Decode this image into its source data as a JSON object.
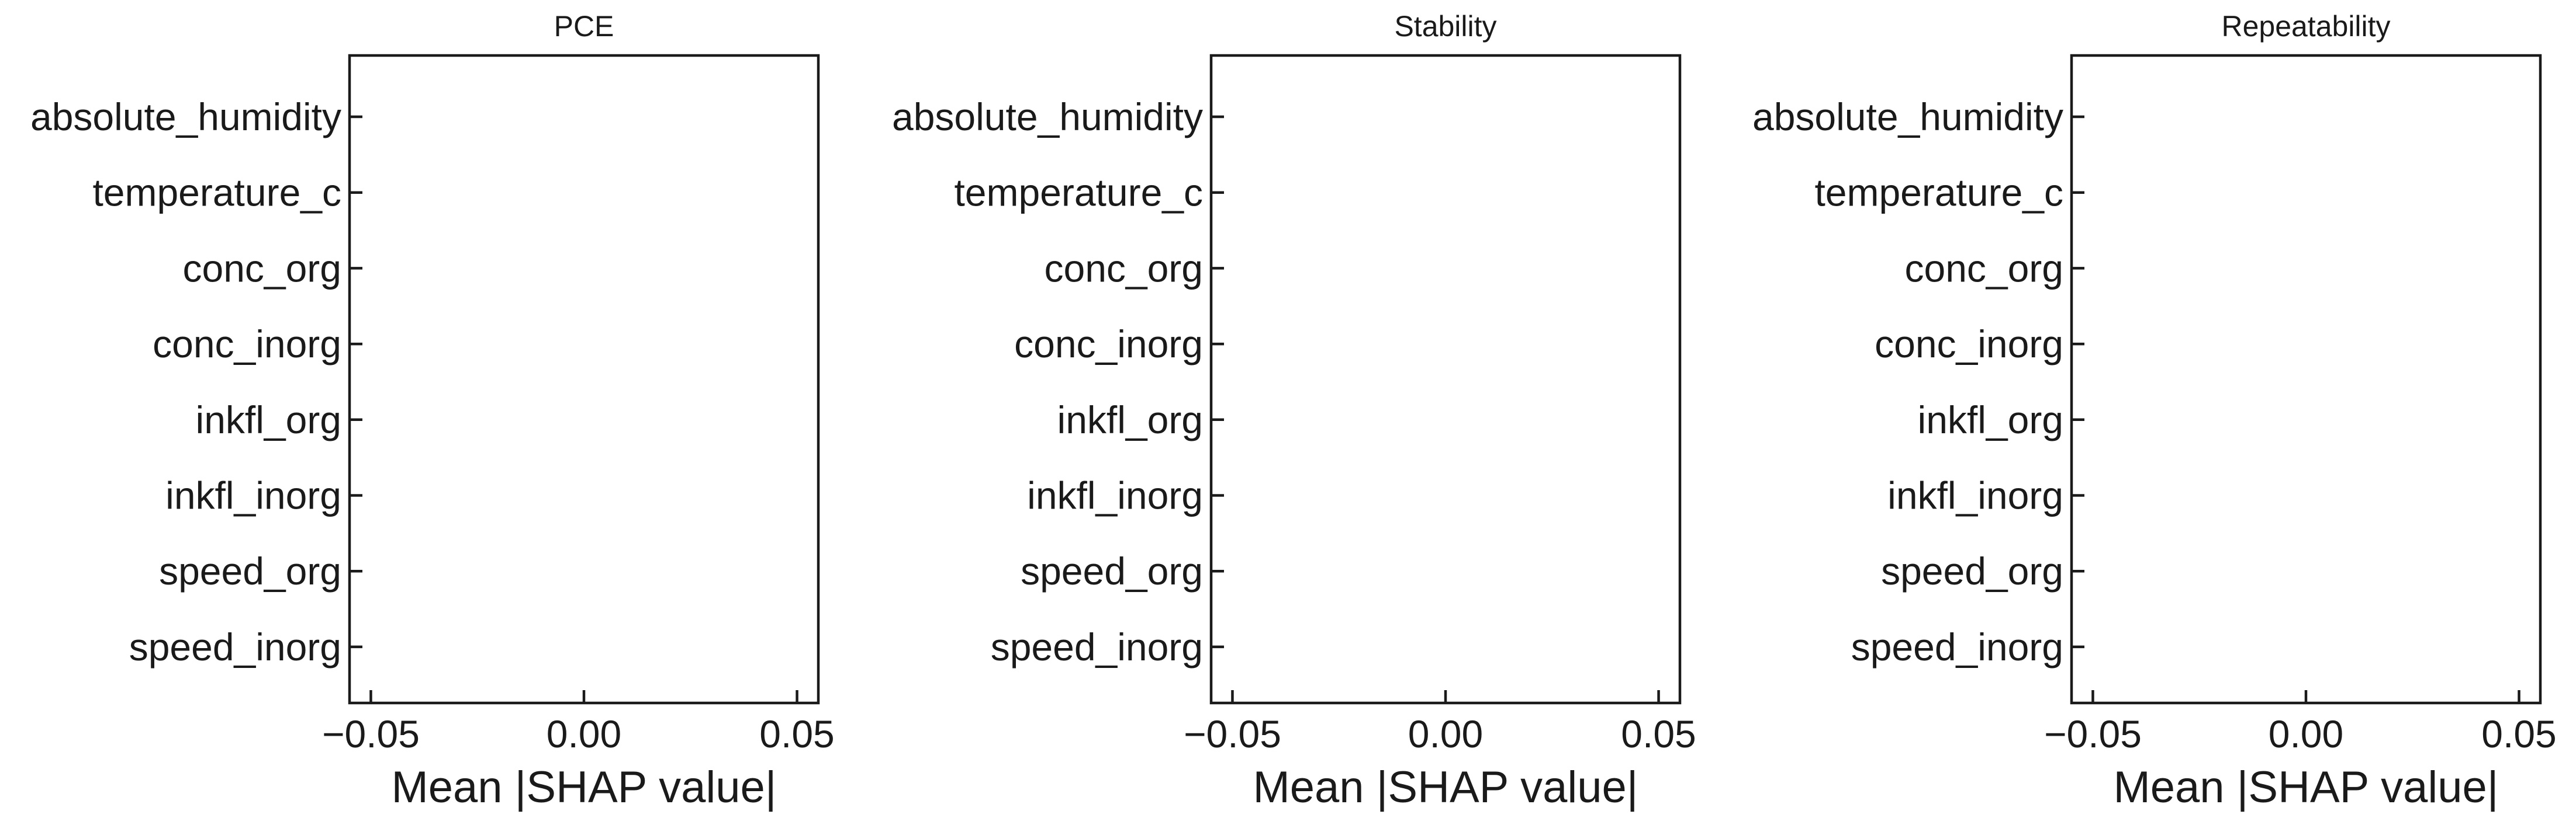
{
  "chart_data": [
    {
      "type": "bar",
      "title": "PCE",
      "xlabel": "Mean |SHAP value|",
      "ylabel": "",
      "orientation": "horizontal",
      "categories": [
        "absolute_humidity",
        "temperature_c",
        "conc_org",
        "conc_inorg",
        "inkfl_org",
        "inkfl_inorg",
        "speed_org",
        "speed_inorg"
      ],
      "values": [
        0,
        0,
        0,
        0,
        0,
        0,
        0,
        0
      ],
      "xlim": [
        -0.055,
        0.055
      ],
      "xticks": [
        -0.05,
        0.0,
        0.05
      ],
      "xtick_labels": [
        "−0.05",
        "0.00",
        "0.05"
      ],
      "grid": false,
      "color": "#1f77b4"
    },
    {
      "type": "bar",
      "title": "Stability",
      "xlabel": "Mean |SHAP value|",
      "ylabel": "",
      "orientation": "horizontal",
      "categories": [
        "absolute_humidity",
        "temperature_c",
        "conc_org",
        "conc_inorg",
        "inkfl_org",
        "inkfl_inorg",
        "speed_org",
        "speed_inorg"
      ],
      "values": [
        0,
        0,
        0,
        0,
        0,
        0,
        0,
        0
      ],
      "xlim": [
        -0.055,
        0.055
      ],
      "xticks": [
        -0.05,
        0.0,
        0.05
      ],
      "xtick_labels": [
        "−0.05",
        "0.00",
        "0.05"
      ],
      "grid": false,
      "color": "#1f77b4"
    },
    {
      "type": "bar",
      "title": "Repeatability",
      "xlabel": "Mean |SHAP value|",
      "ylabel": "",
      "orientation": "horizontal",
      "categories": [
        "absolute_humidity",
        "temperature_c",
        "conc_org",
        "conc_inorg",
        "inkfl_org",
        "inkfl_inorg",
        "speed_org",
        "speed_inorg"
      ],
      "values": [
        0,
        0,
        0,
        0,
        0,
        0,
        0,
        0
      ],
      "xlim": [
        -0.055,
        0.055
      ],
      "xticks": [
        -0.05,
        0.0,
        0.05
      ],
      "xtick_labels": [
        "−0.05",
        "0.00",
        "0.05"
      ],
      "grid": false,
      "color": "#1f77b4"
    }
  ]
}
